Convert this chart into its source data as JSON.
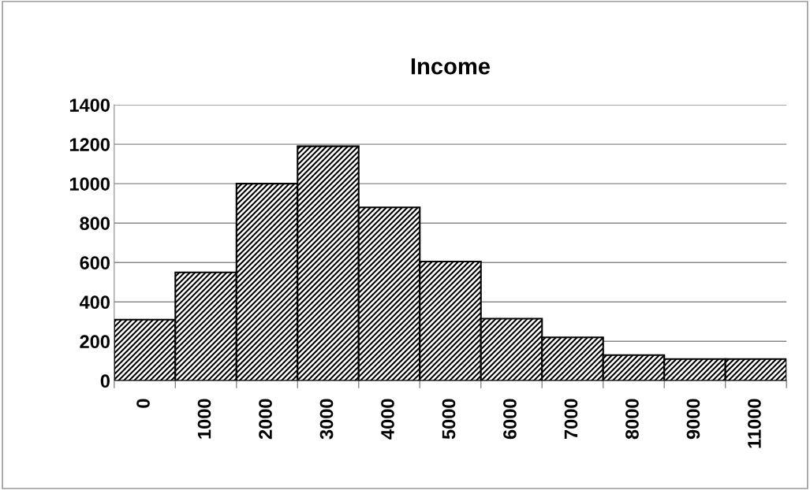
{
  "chart_data": {
    "type": "bar",
    "title": "Income",
    "categories": [
      "0",
      "1000",
      "2000",
      "3000",
      "4000",
      "5000",
      "6000",
      "7000",
      "8000",
      "9000",
      "11000"
    ],
    "values": [
      310,
      550,
      1000,
      1190,
      880,
      605,
      315,
      220,
      130,
      110,
      110
    ],
    "color": "#000000",
    "ylim": [
      0,
      1400
    ],
    "yticks": [
      0,
      200,
      400,
      600,
      800,
      1000,
      1200,
      1400
    ],
    "grid": "y",
    "legend": false
  }
}
